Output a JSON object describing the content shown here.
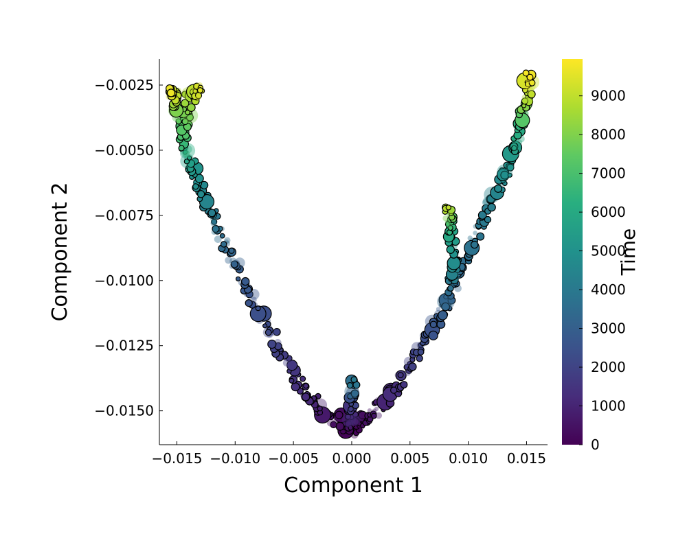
{
  "chart_data": {
    "type": "scatter",
    "title": "",
    "xlabel": "Component 1",
    "ylabel": "Component 2",
    "xlim": [
      -0.0165,
      0.0168
    ],
    "ylim": [
      -0.0163,
      -0.0015
    ],
    "xticks": [
      -0.015,
      -0.01,
      -0.005,
      0.0,
      0.005,
      0.01,
      0.015
    ],
    "xtick_labels": [
      "−0.015",
      "−0.010",
      "−0.005",
      "0.000",
      "0.005",
      "0.010",
      "0.015"
    ],
    "yticks": [
      -0.0025,
      -0.005,
      -0.0075,
      -0.01,
      -0.0125,
      -0.015
    ],
    "ytick_labels": [
      "−0.0025",
      "−0.0050",
      "−0.0075",
      "−0.0100",
      "−0.0125",
      "−0.0150"
    ],
    "grid": false,
    "legend": "none",
    "colorbar": {
      "label": "Time",
      "colormap": "viridis",
      "range": [
        0,
        9950
      ],
      "ticks": [
        0,
        1000,
        2000,
        3000,
        4000,
        5000,
        6000,
        7000,
        8000,
        9000
      ],
      "tick_labels": [
        "0",
        "1000",
        "2000",
        "3000",
        "4000",
        "5000",
        "6000",
        "7000",
        "8000",
        "9000"
      ]
    },
    "branches": [
      {
        "points": [
          [
            0.0,
            -0.0157,
            0
          ],
          [
            -0.002,
            -0.0152,
            500
          ],
          [
            -0.004,
            -0.0143,
            1200
          ],
          [
            -0.006,
            -0.0128,
            1800
          ],
          [
            -0.008,
            -0.0112,
            2400
          ],
          [
            -0.01,
            -0.0093,
            3000
          ],
          [
            -0.012,
            -0.0075,
            4000
          ],
          [
            -0.0135,
            -0.006,
            5000
          ],
          [
            -0.0145,
            -0.0045,
            6500
          ],
          [
            -0.015,
            -0.003,
            8500
          ],
          [
            -0.0155,
            -0.0028,
            9700
          ]
        ]
      },
      {
        "points": [
          [
            -0.0145,
            -0.005,
            6500
          ],
          [
            -0.014,
            -0.003,
            8500
          ],
          [
            -0.013,
            -0.0027,
            9500
          ]
        ]
      },
      {
        "points": [
          [
            0.0,
            -0.0157,
            0
          ],
          [
            0.002,
            -0.015,
            600
          ],
          [
            0.004,
            -0.014,
            1400
          ],
          [
            0.006,
            -0.0125,
            2200
          ],
          [
            0.008,
            -0.011,
            3000
          ],
          [
            0.01,
            -0.009,
            3600
          ],
          [
            0.012,
            -0.007,
            4200
          ],
          [
            0.0135,
            -0.0055,
            5000
          ],
          [
            0.0145,
            -0.004,
            6500
          ],
          [
            0.015,
            -0.003,
            8500
          ],
          [
            0.0153,
            -0.0022,
            9900
          ]
        ]
      },
      {
        "points": [
          [
            0.008,
            -0.011,
            3000
          ],
          [
            0.0088,
            -0.0095,
            4500
          ],
          [
            0.0085,
            -0.008,
            6000
          ],
          [
            0.0083,
            -0.0072,
            9000
          ]
        ]
      },
      {
        "points": [
          [
            0.0,
            -0.0157,
            0
          ],
          [
            0.0,
            -0.015,
            1500
          ],
          [
            0.0002,
            -0.0138,
            4000
          ]
        ]
      }
    ]
  }
}
